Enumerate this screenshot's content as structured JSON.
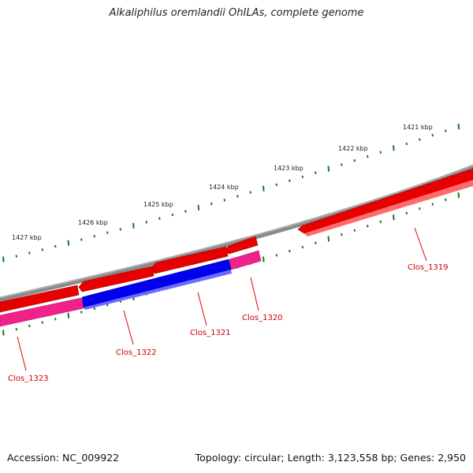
{
  "title": "Alkaliphilus oremlandii OhILAs, complete genome",
  "footer": {
    "accession": "Accession: NC_009922",
    "summary": "Topology: circular; Length: 3,123,558 bp; Genes: 2,950"
  },
  "colors": {
    "backbone": "#808080",
    "forward_gene": "#e60000",
    "reverse_gene": "#ee2288",
    "highlight_gene": "#0000ee",
    "tick": "#1a7a1a",
    "gene_label": "#cc0000"
  },
  "scale_labels": [
    "1421 kbp",
    "1422 kbp",
    "1423 kbp",
    "1424 kbp",
    "1425 kbp",
    "1426 kbp",
    "1427 kbp"
  ],
  "genes": [
    {
      "name": "Clos_1319",
      "strand": "forward"
    },
    {
      "name": "Clos_1320",
      "strand": "reverse"
    },
    {
      "name": "Clos_1321",
      "strand": "reverse",
      "highlighted": true
    },
    {
      "name": "Clos_1322",
      "strand": "reverse"
    },
    {
      "name": "Clos_1323",
      "strand": "reverse"
    }
  ]
}
